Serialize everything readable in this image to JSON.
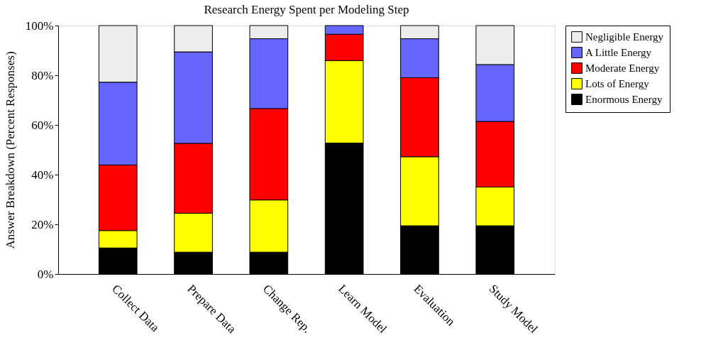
{
  "chart_data": {
    "type": "bar",
    "title": "Research Energy Spent per Modeling Step",
    "ylabel": "Answer Breakdown (Percent Responses)",
    "categories": [
      "Collect Data",
      "Prepare Data",
      "Change Rep.",
      "Learn Model",
      "Evaluation",
      "Study Model"
    ],
    "stacked": true,
    "legend": "right",
    "grid": false,
    "ylim": [
      0,
      100
    ],
    "yticks": [
      {
        "value": 0,
        "label": "0%"
      },
      {
        "value": 20,
        "label": "20%"
      },
      {
        "value": 40,
        "label": "40%"
      },
      {
        "value": 60,
        "label": "60%"
      },
      {
        "value": 80,
        "label": "80%"
      },
      {
        "value": 100,
        "label": "100%"
      }
    ],
    "series": [
      {
        "name": "Enormous Energy",
        "color": "#000000",
        "values": [
          10.5,
          8.8,
          8.8,
          52.7,
          19.4,
          19.4
        ]
      },
      {
        "name": "Lots of Energy",
        "color": "#ffff00",
        "values": [
          7.0,
          15.7,
          21.0,
          33.2,
          27.8,
          15.6
        ]
      },
      {
        "name": "Moderate Energy",
        "color": "#ff0000",
        "values": [
          26.4,
          28.1,
          36.8,
          10.6,
          31.8,
          26.4
        ]
      },
      {
        "name": "A Little Energy",
        "color": "#6666ff",
        "values": [
          33.3,
          36.8,
          28.1,
          3.5,
          15.7,
          22.9
        ]
      },
      {
        "name": "Negligible Energy",
        "color": "#ececec",
        "values": [
          22.8,
          10.6,
          5.3,
          0,
          5.3,
          15.7
        ]
      }
    ]
  }
}
